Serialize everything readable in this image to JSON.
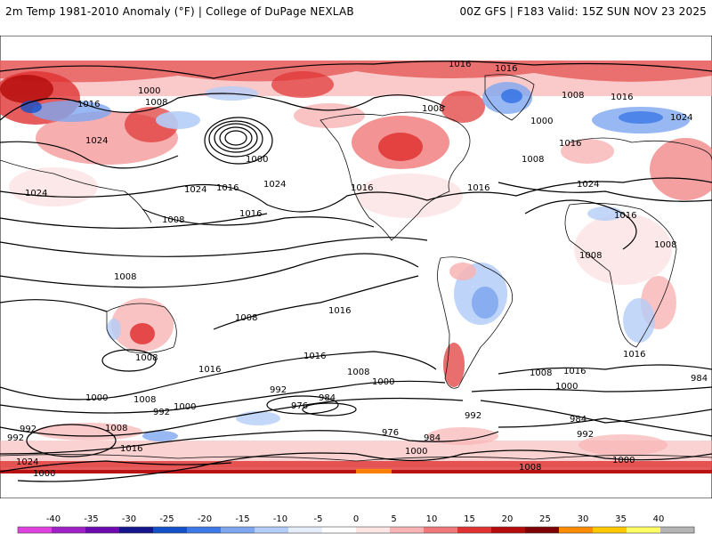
{
  "header": {
    "left_title": "2m Temp 1981-2010 Anomaly (°F) | College of DuPage NEXLAB",
    "right_title": "00Z GFS | F183 Valid: 15Z SUN NOV 23 2025"
  },
  "colorbar": {
    "ticks": [
      "-40",
      "-35",
      "-30",
      "-25",
      "-20",
      "-15",
      "-10",
      "-5",
      "0",
      "5",
      "10",
      "15",
      "20",
      "25",
      "30",
      "35",
      "40"
    ],
    "colors": [
      "#e040e0",
      "#a020c8",
      "#6a0ab0",
      "#14148c",
      "#1450c8",
      "#3c78e6",
      "#7ea6f0",
      "#b4cdf8",
      "#e6eefc",
      "#ffffff",
      "#fce6e6",
      "#f8b4b4",
      "#f07878",
      "#e03232",
      "#b40a0a",
      "#7c0000",
      "#ff8c00",
      "#ffc800",
      "#ffff64",
      "#b4b4b4"
    ]
  },
  "isobar_labels": [
    {
      "text": "1016"
    },
    {
      "text": "1000"
    },
    {
      "text": "1008"
    },
    {
      "text": "1016"
    },
    {
      "text": "1000"
    },
    {
      "text": "1024"
    },
    {
      "text": "1024"
    },
    {
      "text": "1016"
    },
    {
      "text": "1024"
    },
    {
      "text": "1016"
    },
    {
      "text": "1016"
    },
    {
      "text": "1008"
    },
    {
      "text": "1016"
    },
    {
      "text": "1008"
    },
    {
      "text": "1008"
    },
    {
      "text": "1016"
    },
    {
      "text": "1008"
    },
    {
      "text": "1016"
    },
    {
      "text": "1008"
    },
    {
      "text": "1016"
    },
    {
      "text": "1000"
    },
    {
      "text": "1008"
    },
    {
      "text": "1000"
    },
    {
      "text": "992"
    },
    {
      "text": "984"
    },
    {
      "text": "976"
    },
    {
      "text": "992"
    },
    {
      "text": "1000"
    },
    {
      "text": "992"
    },
    {
      "text": "1008"
    },
    {
      "text": "1016"
    },
    {
      "text": "1024"
    },
    {
      "text": "1000"
    },
    {
      "text": "992"
    },
    {
      "text": "976"
    },
    {
      "text": "984"
    },
    {
      "text": "1000"
    },
    {
      "text": "1008"
    },
    {
      "text": "992"
    },
    {
      "text": "984"
    },
    {
      "text": "992"
    },
    {
      "text": "1000"
    },
    {
      "text": "1016"
    },
    {
      "text": "1000"
    },
    {
      "text": "1008"
    },
    {
      "text": "1016"
    },
    {
      "text": "984"
    },
    {
      "text": "1024"
    },
    {
      "text": "1016"
    },
    {
      "text": "1024"
    },
    {
      "text": "1016"
    },
    {
      "text": "1008"
    },
    {
      "text": "1000"
    },
    {
      "text": "1008"
    },
    {
      "text": "1016"
    },
    {
      "text": "1008"
    },
    {
      "text": "1008"
    },
    {
      "text": "1016"
    },
    {
      "text": "1024"
    },
    {
      "text": "1008"
    }
  ]
}
